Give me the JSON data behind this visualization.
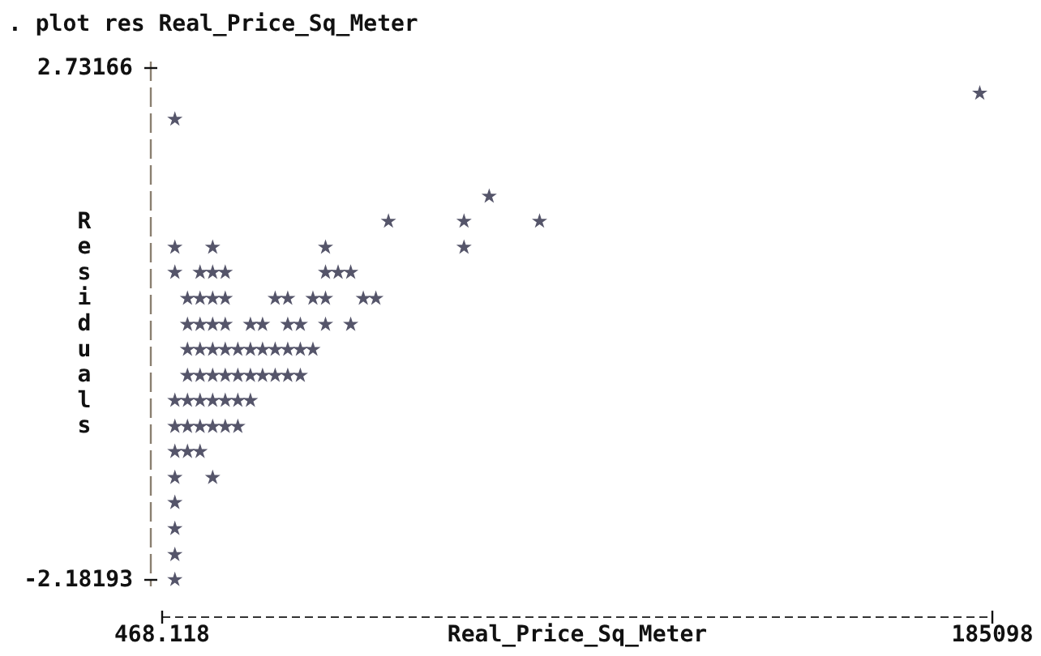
{
  "chart_data": {
    "type": "scatter",
    "title": ". plot res Real_Price_Sq_Meter",
    "xlabel": "Real_Price_Sq_Meter",
    "ylabel": "Residuals",
    "xlim": [
      468.118,
      185098
    ],
    "xticks": [
      468.118,
      185098
    ],
    "ylim": [
      -2.18193,
      2.73166
    ],
    "yticks": [
      -2.18193,
      2.73166
    ],
    "marker": "star",
    "color": "#55556a",
    "x": [
      182300,
      3300,
      73200,
      50800,
      67600,
      84400,
      3300,
      11700,
      36800,
      67600,
      3300,
      8900,
      11700,
      14500,
      36800,
      39600,
      42400,
      6100,
      8900,
      11700,
      14500,
      25600,
      28400,
      34000,
      36800,
      45200,
      48000,
      6100,
      8900,
      11700,
      14500,
      20100,
      22800,
      28400,
      31200,
      36800,
      42400,
      6100,
      8900,
      11700,
      14500,
      17300,
      20100,
      22800,
      25600,
      28400,
      31200,
      34000,
      6100,
      8900,
      11700,
      14500,
      17300,
      20100,
      22800,
      25600,
      28400,
      31200,
      3300,
      6100,
      8900,
      11700,
      14500,
      17300,
      20100,
      3300,
      6100,
      8900,
      11700,
      14500,
      17300,
      3300,
      6100,
      8900,
      3300,
      11700,
      3300,
      3300,
      3300,
      3300
    ],
    "values": [
      2.49,
      2.24,
      1.5,
      1.26,
      1.26,
      1.26,
      1.01,
      1.01,
      1.01,
      1.01,
      0.77,
      0.77,
      0.77,
      0.77,
      0.77,
      0.77,
      0.77,
      0.52,
      0.52,
      0.52,
      0.52,
      0.52,
      0.52,
      0.52,
      0.52,
      0.52,
      0.52,
      0.27,
      0.27,
      0.27,
      0.27,
      0.27,
      0.27,
      0.27,
      0.27,
      0.27,
      0.27,
      0.03,
      0.03,
      0.03,
      0.03,
      0.03,
      0.03,
      0.03,
      0.03,
      0.03,
      0.03,
      0.03,
      -0.22,
      -0.22,
      -0.22,
      -0.22,
      -0.22,
      -0.22,
      -0.22,
      -0.22,
      -0.22,
      -0.22,
      -0.46,
      -0.46,
      -0.46,
      -0.46,
      -0.46,
      -0.46,
      -0.46,
      -0.71,
      -0.71,
      -0.71,
      -0.71,
      -0.71,
      -0.71,
      -0.95,
      -0.95,
      -0.95,
      -1.2,
      -1.2,
      -1.44,
      -1.69,
      -1.94,
      -2.18
    ]
  }
}
